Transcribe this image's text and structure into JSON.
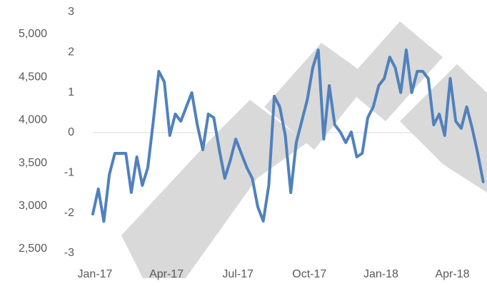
{
  "chart_data": {
    "type": "line",
    "categories": [
      "Jan-17",
      null,
      null,
      null,
      null,
      null,
      null,
      null,
      null,
      null,
      null,
      null,
      null,
      "Apr-17",
      null,
      null,
      null,
      null,
      null,
      null,
      null,
      null,
      null,
      null,
      null,
      null,
      "Jul-17",
      null,
      null,
      null,
      null,
      null,
      null,
      null,
      null,
      null,
      null,
      null,
      null,
      "Oct-17",
      null,
      null,
      null,
      null,
      null,
      null,
      null,
      null,
      null,
      null,
      null,
      null,
      "Jan-18",
      null,
      null,
      null,
      null,
      null,
      null,
      null,
      null,
      null,
      null,
      null,
      null,
      "Apr-18",
      null,
      null,
      null,
      null,
      null,
      null
    ],
    "series": [
      {
        "color": "#4f81bd",
        "values": [
          2907,
          3198,
          2820,
          3364,
          3613,
          3613,
          3613,
          3156,
          3571,
          3239,
          3447,
          3987,
          4568,
          4444,
          3821,
          4070,
          3987,
          4153,
          4319,
          3945,
          3654,
          4070,
          4028,
          3654,
          3322,
          3530,
          3779,
          3613,
          3447,
          3322,
          2990,
          2824,
          3239,
          4278,
          4153,
          3821,
          3156,
          3738,
          3987,
          4236,
          4610,
          4817,
          3779,
          4402,
          3945,
          3862,
          3738,
          3862,
          3571,
          3613,
          4028,
          4153,
          4402,
          4485,
          4734,
          4610,
          4319,
          4817,
          4319,
          4568,
          4568,
          4485,
          3945,
          4070,
          3821,
          4485,
          3987,
          3904,
          4153,
          3904,
          3613,
          3281
        ]
      }
    ],
    "ylim": [
      2450,
      5257
    ],
    "yticks": [
      {
        "value": 2500,
        "label": "2,500"
      },
      {
        "value": 3000,
        "label": "3,000"
      },
      {
        "value": 3500,
        "label": "3,500"
      },
      {
        "value": 4000,
        "label": "4,000"
      },
      {
        "value": 4500,
        "label": "4,500"
      },
      {
        "value": 5000,
        "label": "5,000"
      }
    ],
    "y2lim": [
      -3,
      3
    ],
    "y2ticks": [
      -3,
      -2,
      -1,
      0,
      1,
      2,
      3
    ]
  }
}
